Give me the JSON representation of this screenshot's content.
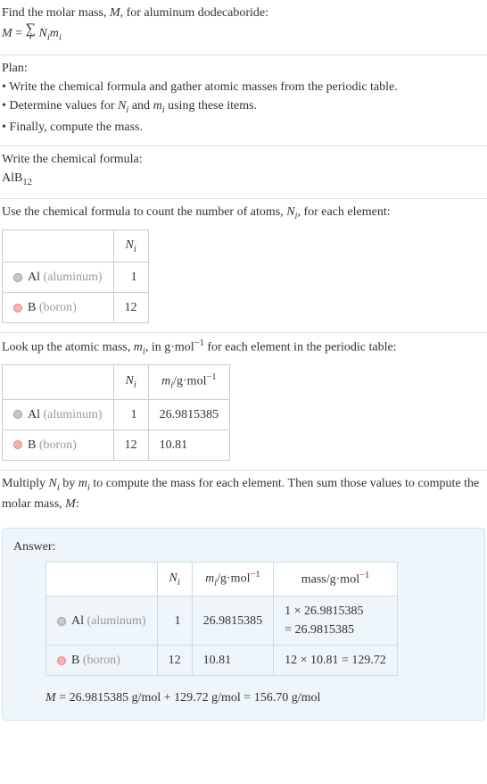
{
  "intro": {
    "line1_pre": "Find the molar mass, ",
    "line1_var": "M",
    "line1_post": ", for aluminum dodecaboride:",
    "eq_lhs": "M",
    "eq_eq": " = ",
    "eq_sum_under": "i",
    "eq_rhs_a": "N",
    "eq_rhs_a_sub": "i",
    "eq_rhs_b": "m",
    "eq_rhs_b_sub": "i"
  },
  "plan": {
    "heading": "Plan:",
    "b1_pre": "• Write the chemical formula and gather atomic masses from the periodic table.",
    "b2_pre": "• Determine values for ",
    "b2_var1": "N",
    "b2_sub1": "i",
    "b2_mid": " and ",
    "b2_var2": "m",
    "b2_sub2": "i",
    "b2_post": " using these items.",
    "b3": "• Finally, compute the mass."
  },
  "formula": {
    "heading": "Write the chemical formula:",
    "text_a": "AlB",
    "text_sub": "12"
  },
  "count": {
    "line_pre": "Use the chemical formula to count the number of atoms, ",
    "line_var": "N",
    "line_sub": "i",
    "line_post": ", for each element:",
    "header_N": "N",
    "header_N_sub": "i",
    "row1_el": "Al",
    "row1_el_gray": " (aluminum)",
    "row1_n": "1",
    "row2_el": "B",
    "row2_el_gray": " (boron)",
    "row2_n": "12",
    "color_al": "#c8c8c8",
    "color_b": "#f5b2b0"
  },
  "lookup": {
    "line_pre": "Look up the atomic mass, ",
    "line_var": "m",
    "line_sub": "i",
    "line_mid": ", in g·mol",
    "line_sup": "−1",
    "line_post": " for each element in the periodic table:",
    "header_N": "N",
    "header_N_sub": "i",
    "header_m": "m",
    "header_m_sub": "i",
    "header_m_unit": "/g·mol",
    "header_m_sup": "−1",
    "row1_n": "1",
    "row1_m": "26.9815385",
    "row2_n": "12",
    "row2_m": "10.81"
  },
  "multiply": {
    "line_pre": "Multiply ",
    "v1": "N",
    "s1": "i",
    "mid1": " by ",
    "v2": "m",
    "s2": "i",
    "post": " to compute the mass for each element. Then sum those values to compute the molar mass, ",
    "v3": "M",
    "end": ":"
  },
  "answer": {
    "label": "Answer:",
    "hdr_N": "N",
    "hdr_N_sub": "i",
    "hdr_m": "m",
    "hdr_m_sub": "i",
    "hdr_m_unit": "/g·mol",
    "hdr_m_sup": "−1",
    "hdr_mass": "mass/g·mol",
    "hdr_mass_sup": "−1",
    "row1_n": "1",
    "row1_m": "26.9815385",
    "row1_mass_a": "1 × 26.9815385",
    "row1_mass_b": "= 26.9815385",
    "row2_n": "12",
    "row2_m": "10.81",
    "row2_mass": "12 × 10.81 = 129.72",
    "final_var": "M",
    "final_text": " = 26.9815385 g/mol + 129.72 g/mol = 156.70 g/mol"
  }
}
